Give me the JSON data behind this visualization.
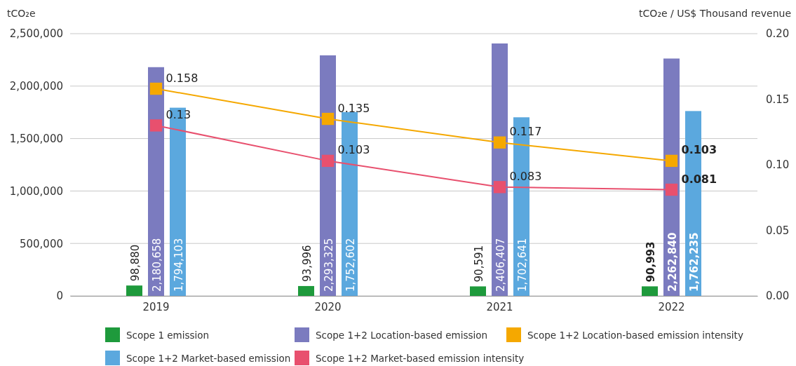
{
  "chart_data": {
    "type": "bar",
    "categories": [
      "2019",
      "2020",
      "2021",
      "2022"
    ],
    "ylabel": "tCO₂e",
    "y2label": "tCO₂e / US$ Thousand revenue",
    "ylim": [
      0,
      2500000
    ],
    "yticks": [
      {
        "value": 0,
        "label": "0"
      },
      {
        "value": 500000,
        "label": "500,000"
      },
      {
        "value": 1000000,
        "label": "1,000,000"
      },
      {
        "value": 1500000,
        "label": "1,500,000"
      },
      {
        "value": 2000000,
        "label": "2,000,000"
      },
      {
        "value": 2500000,
        "label": "2,500,000"
      }
    ],
    "y2lim": [
      0,
      0.2
    ],
    "y2ticks": [
      {
        "value": 0,
        "label": "0.00"
      },
      {
        "value": 0.05,
        "label": "0.05"
      },
      {
        "value": 0.1,
        "label": "0.10"
      },
      {
        "value": 0.15,
        "label": "0.15"
      },
      {
        "value": 0.2,
        "label": "0.20"
      }
    ],
    "grid": "y",
    "legend": "bottom",
    "marker": "square",
    "series": [
      {
        "name": "Scope 1 emission",
        "color": "#1e9a3c",
        "values": [
          98880,
          93996,
          90591,
          90993
        ],
        "value_labels": [
          "98,880",
          "93,996",
          "90,591",
          "90,993"
        ]
      },
      {
        "name": "Scope 1+2 Location-based emission",
        "color": "#7b7bbf",
        "values": [
          2180658,
          2293325,
          2406407,
          2262840
        ],
        "value_labels": [
          "2,180,658",
          "2,293,325",
          "2,406,407",
          "2,262,840"
        ]
      },
      {
        "name": "Scope 1+2 Market-based emission",
        "color": "#5ba8de",
        "values": [
          1794103,
          1752602,
          1702641,
          1762235
        ],
        "value_labels": [
          "1,794,103",
          "1,752,602",
          "1,702,641",
          "1,762,235"
        ]
      },
      {
        "name": "Scope 1+2 Location-based emission intensity",
        "type": "line",
        "axis": "y2",
        "color": "#f5a800",
        "values": [
          0.158,
          0.135,
          0.117,
          0.103
        ],
        "value_labels": [
          "0.158",
          "0.135",
          "0.117",
          "0.103"
        ]
      },
      {
        "name": "Scope 1+2 Market-based emission intensity",
        "type": "line",
        "axis": "y2",
        "color": "#e8506e",
        "values": [
          0.13,
          0.103,
          0.083,
          0.081
        ],
        "value_labels": [
          "0.13",
          "0.103",
          "0.083",
          "0.081"
        ]
      }
    ]
  }
}
